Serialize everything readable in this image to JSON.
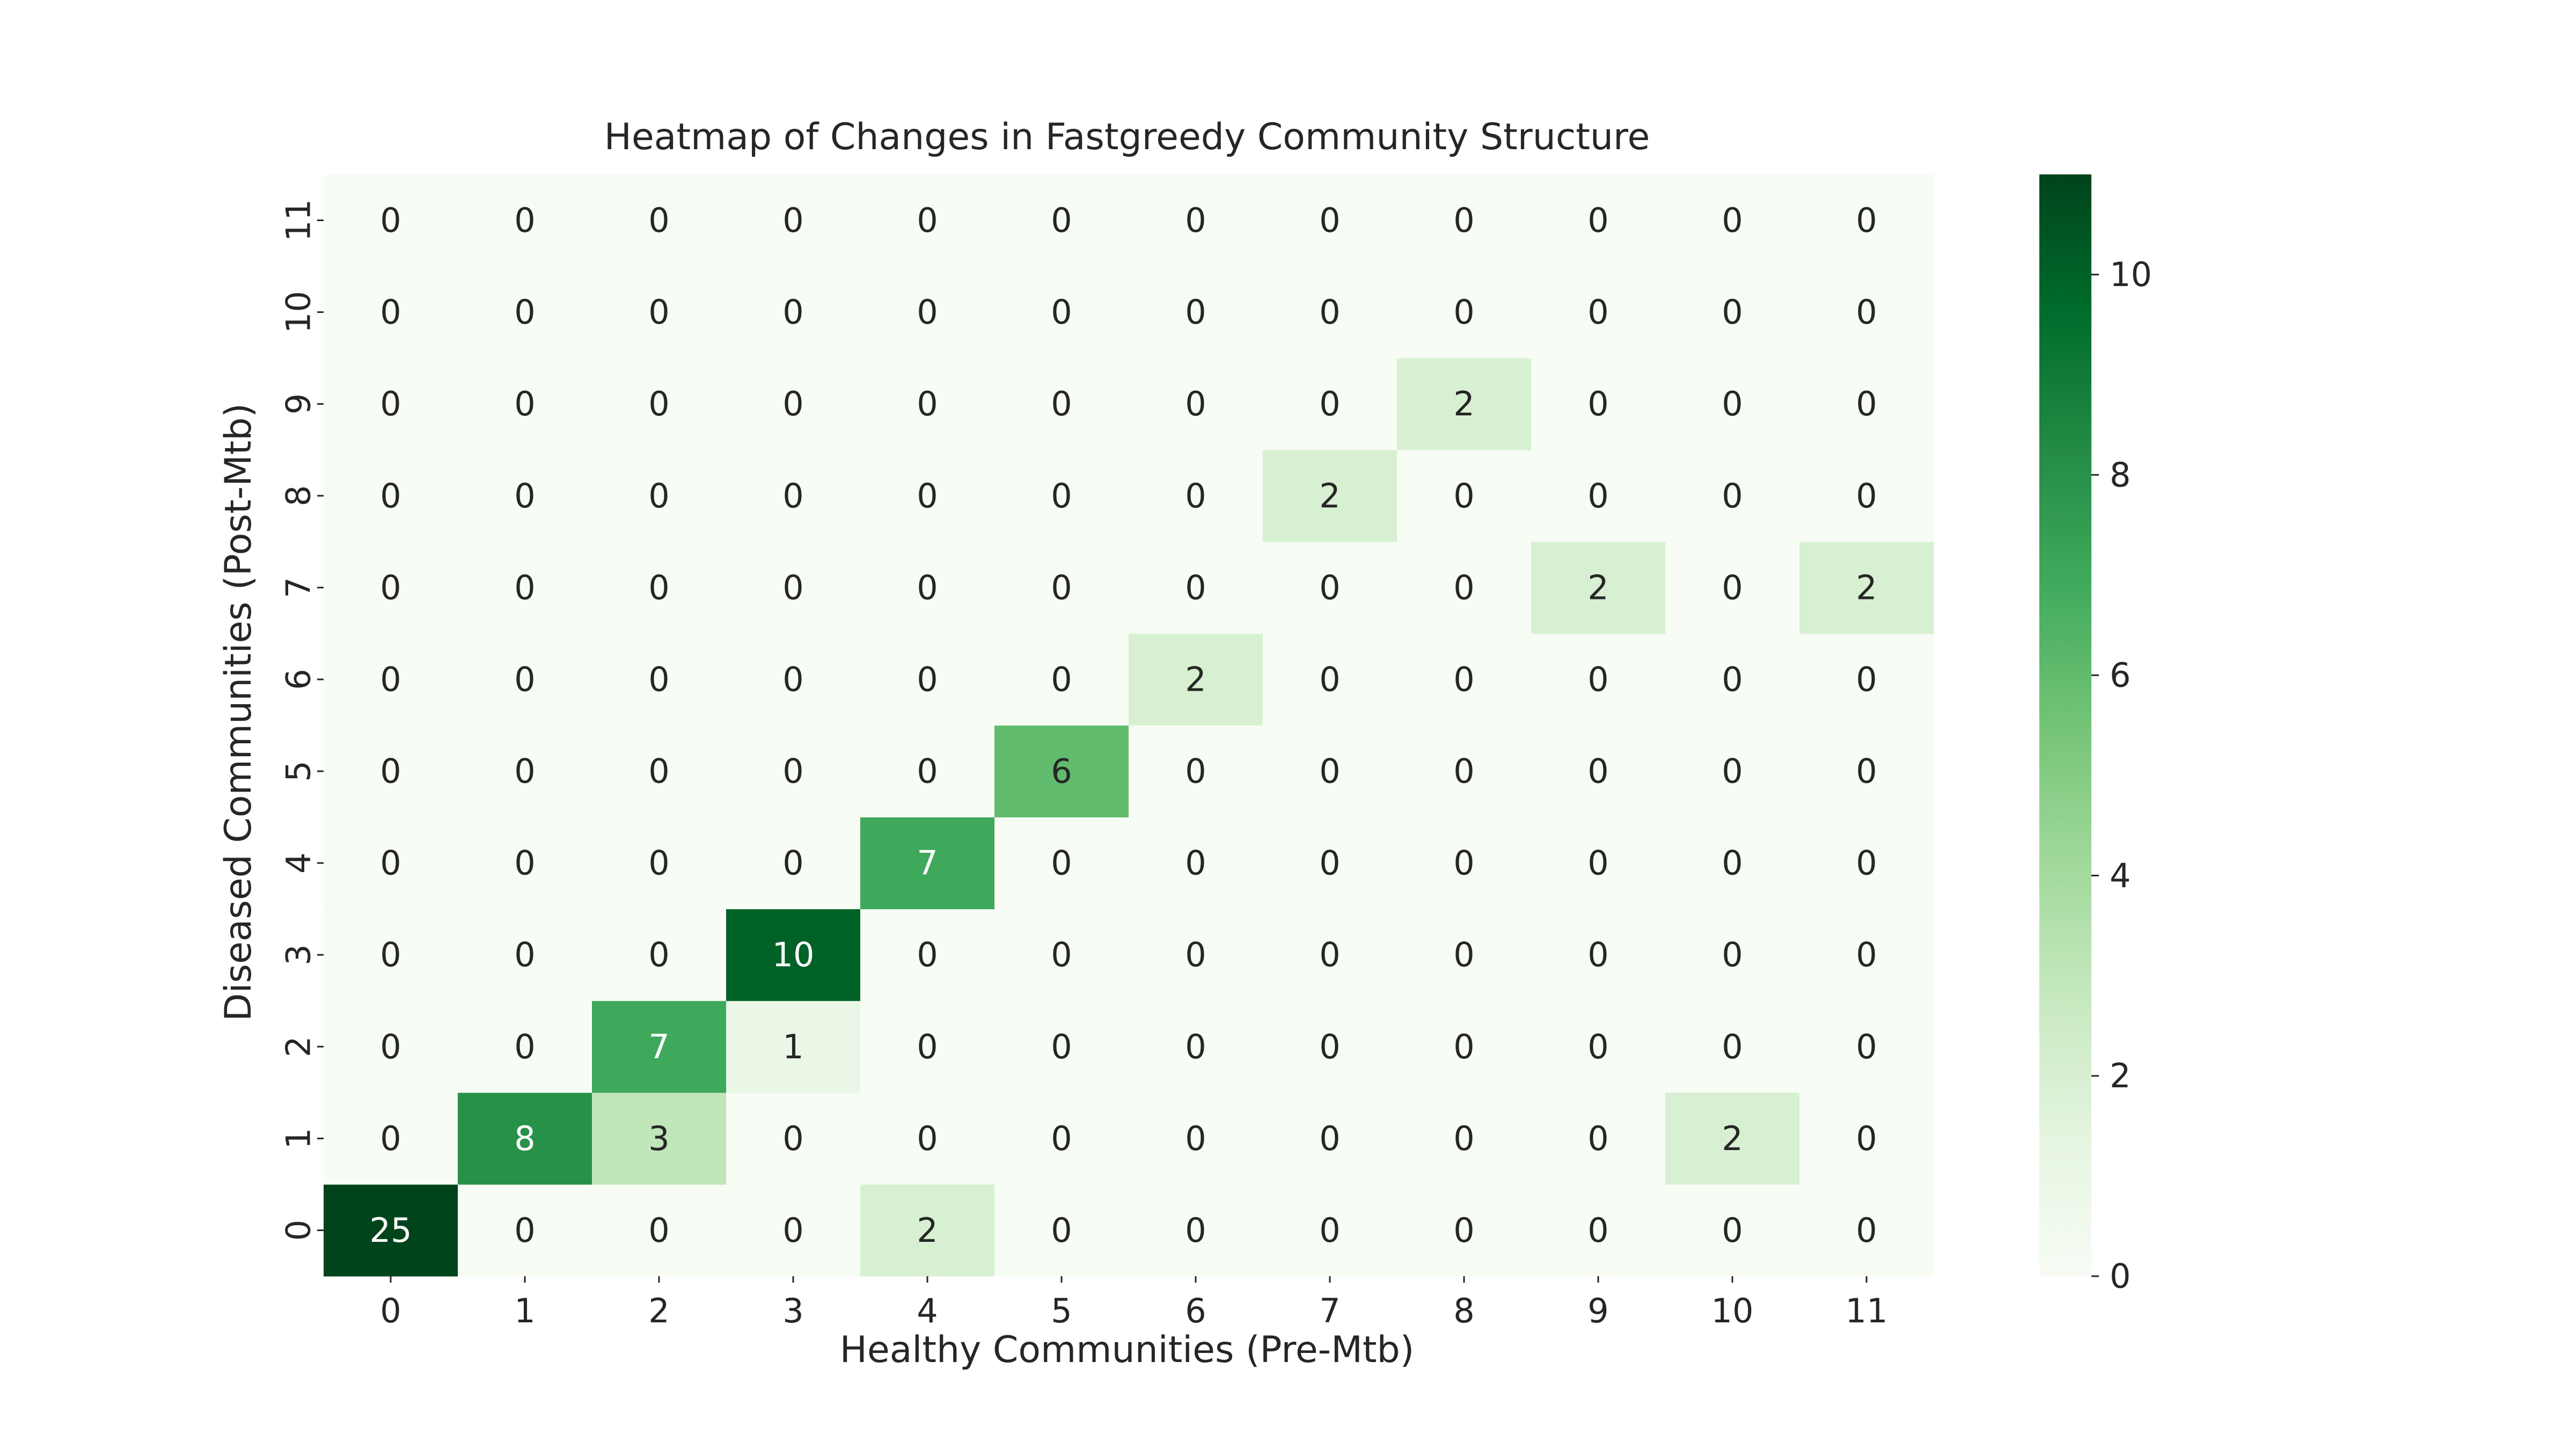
{
  "chart_data": {
    "type": "heatmap",
    "title": "Heatmap of Changes in Fastgreedy Community Structure",
    "xlabel": "Healthy Communities (Pre-Mtb)",
    "ylabel": "Diseased Communities (Post-Mtb)",
    "x_categories": [
      "0",
      "1",
      "2",
      "3",
      "4",
      "5",
      "6",
      "7",
      "8",
      "9",
      "10",
      "11"
    ],
    "y_categories": [
      "0",
      "1",
      "2",
      "3",
      "4",
      "5",
      "6",
      "7",
      "8",
      "9",
      "10",
      "11"
    ],
    "values": [
      [
        25,
        0,
        0,
        0,
        2,
        0,
        0,
        0,
        0,
        0,
        0,
        0
      ],
      [
        0,
        8,
        3,
        0,
        0,
        0,
        0,
        0,
        0,
        0,
        2,
        0
      ],
      [
        0,
        0,
        7,
        1,
        0,
        0,
        0,
        0,
        0,
        0,
        0,
        0
      ],
      [
        0,
        0,
        0,
        10,
        0,
        0,
        0,
        0,
        0,
        0,
        0,
        0
      ],
      [
        0,
        0,
        0,
        0,
        7,
        0,
        0,
        0,
        0,
        0,
        0,
        0
      ],
      [
        0,
        0,
        0,
        0,
        0,
        6,
        0,
        0,
        0,
        0,
        0,
        0
      ],
      [
        0,
        0,
        0,
        0,
        0,
        0,
        2,
        0,
        0,
        0,
        0,
        0
      ],
      [
        0,
        0,
        0,
        0,
        0,
        0,
        0,
        0,
        0,
        2,
        0,
        2
      ],
      [
        0,
        0,
        0,
        0,
        0,
        0,
        0,
        2,
        0,
        0,
        0,
        0
      ],
      [
        0,
        0,
        0,
        0,
        0,
        0,
        0,
        0,
        2,
        0,
        0,
        0
      ],
      [
        0,
        0,
        0,
        0,
        0,
        0,
        0,
        0,
        0,
        0,
        0,
        0
      ],
      [
        0,
        0,
        0,
        0,
        0,
        0,
        0,
        0,
        0,
        0,
        0,
        0
      ]
    ],
    "colormap": "Greens",
    "color_range": [
      0,
      11
    ],
    "colorbar_ticks": [
      0,
      2,
      4,
      6,
      8,
      10
    ],
    "annotations": true,
    "y_axis_order": "bottom-to-top",
    "grid": false,
    "legend": "colorbar right"
  }
}
